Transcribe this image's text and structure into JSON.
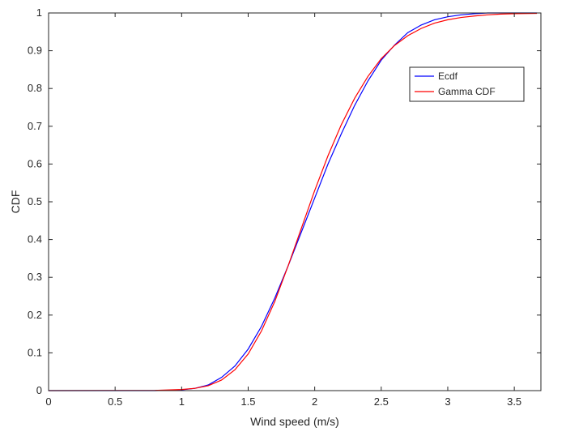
{
  "chart_data": {
    "type": "line",
    "title": "",
    "xlabel": "Wind speed (m/s)",
    "ylabel": "CDF",
    "xlim": [
      0,
      3.7
    ],
    "ylim": [
      0,
      1
    ],
    "xticks": [
      0,
      0.5,
      1,
      1.5,
      2,
      2.5,
      3,
      3.5
    ],
    "xtick_labels": [
      "0",
      "0.5",
      "1",
      "1.5",
      "2",
      "2.5",
      "3",
      "3.5"
    ],
    "yticks": [
      0,
      0.1,
      0.2,
      0.3,
      0.4,
      0.5,
      0.6,
      0.7,
      0.8,
      0.9,
      1
    ],
    "ytick_labels": [
      "0",
      "0.1",
      "0.2",
      "0.3",
      "0.4",
      "0.5",
      "0.6",
      "0.7",
      "0.8",
      "0.9",
      "1"
    ],
    "grid": false,
    "legend_position": "top-right",
    "series": [
      {
        "name": "Ecdf",
        "color": "#0000ff",
        "x": [
          0,
          0.8,
          1.0,
          1.1,
          1.2,
          1.3,
          1.4,
          1.5,
          1.6,
          1.7,
          1.8,
          1.9,
          2.0,
          2.1,
          2.2,
          2.3,
          2.4,
          2.5,
          2.6,
          2.7,
          2.8,
          2.9,
          3.0,
          3.1,
          3.2,
          3.3,
          3.4,
          3.5,
          3.67
        ],
        "y": [
          0,
          0,
          0.002,
          0.006,
          0.015,
          0.035,
          0.065,
          0.11,
          0.17,
          0.245,
          0.33,
          0.42,
          0.51,
          0.6,
          0.68,
          0.755,
          0.82,
          0.875,
          0.915,
          0.948,
          0.968,
          0.982,
          0.99,
          0.995,
          0.998,
          1,
          1,
          1,
          1
        ]
      },
      {
        "name": "Gamma CDF",
        "color": "#ff0000",
        "x": [
          0,
          0.8,
          1.0,
          1.1,
          1.2,
          1.3,
          1.4,
          1.5,
          1.6,
          1.7,
          1.8,
          1.9,
          2.0,
          2.1,
          2.2,
          2.3,
          2.4,
          2.5,
          2.6,
          2.7,
          2.8,
          2.9,
          3.0,
          3.1,
          3.2,
          3.3,
          3.4,
          3.5,
          3.67
        ],
        "y": [
          0,
          0.0005,
          0.003,
          0.006,
          0.013,
          0.028,
          0.055,
          0.097,
          0.158,
          0.236,
          0.33,
          0.43,
          0.53,
          0.622,
          0.704,
          0.774,
          0.832,
          0.879,
          0.914,
          0.94,
          0.959,
          0.973,
          0.982,
          0.988,
          0.992,
          0.995,
          0.997,
          0.998,
          0.999
        ]
      }
    ]
  }
}
